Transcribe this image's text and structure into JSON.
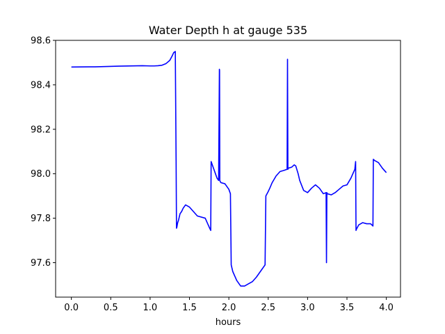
{
  "chart_data": {
    "type": "line",
    "title": "Water Depth h at gauge 535",
    "xlabel": "hours",
    "ylabel": "",
    "xlim": [
      -0.2,
      4.18
    ],
    "ylim": [
      97.445,
      98.6
    ],
    "xticks": [
      0.0,
      0.5,
      1.0,
      1.5,
      2.0,
      2.5,
      3.0,
      3.5,
      4.0
    ],
    "xtick_labels": [
      "0.0",
      "0.5",
      "1.0",
      "1.5",
      "2.0",
      "2.5",
      "3.0",
      "3.5",
      "4.0"
    ],
    "yticks": [
      97.6,
      97.8,
      98.0,
      98.2,
      98.4,
      98.6
    ],
    "ytick_labels": [
      "97.6",
      "97.8",
      "98.0",
      "98.2",
      "98.4",
      "98.6"
    ],
    "grid": false,
    "series": [
      {
        "color": "#0000ff",
        "x": [
          0.0,
          0.3,
          0.6,
          0.9,
          1.0,
          1.05,
          1.1,
          1.15,
          1.2,
          1.25,
          1.28,
          1.3,
          1.32,
          1.33,
          1.33,
          1.335,
          1.34,
          1.345,
          1.35,
          1.36,
          1.38,
          1.4,
          1.42,
          1.45,
          1.5,
          1.55,
          1.6,
          1.7,
          1.75,
          1.77,
          1.775,
          1.8,
          1.83,
          1.85,
          1.87,
          1.88,
          1.882,
          1.885,
          1.89,
          1.9,
          1.95,
          2.0,
          2.02,
          2.03,
          2.05,
          2.1,
          2.15,
          2.2,
          2.25,
          2.3,
          2.35,
          2.4,
          2.46,
          2.47,
          2.5,
          2.52,
          2.55,
          2.6,
          2.65,
          2.7,
          2.74,
          2.745,
          2.75,
          2.755,
          2.8,
          2.83,
          2.85,
          2.88,
          2.9,
          2.95,
          3.0,
          3.05,
          3.1,
          3.15,
          3.2,
          3.235,
          3.24,
          3.245,
          3.25,
          3.3,
          3.35,
          3.4,
          3.45,
          3.5,
          3.55,
          3.6,
          3.61,
          3.615,
          3.62,
          3.65,
          3.7,
          3.75,
          3.8,
          3.83,
          3.835,
          3.85,
          3.9,
          3.95,
          4.0
        ],
        "y": [
          98.48,
          98.481,
          98.484,
          98.486,
          98.485,
          98.485,
          98.486,
          98.488,
          98.495,
          98.51,
          98.53,
          98.545,
          98.55,
          98.06,
          98.07,
          97.755,
          97.76,
          97.77,
          97.78,
          97.79,
          97.82,
          97.83,
          97.845,
          97.86,
          97.85,
          97.83,
          97.81,
          97.8,
          97.76,
          97.745,
          98.055,
          98.03,
          98.0,
          97.98,
          97.97,
          98.47,
          98.465,
          97.97,
          97.965,
          97.96,
          97.955,
          97.93,
          97.91,
          97.59,
          97.56,
          97.52,
          97.495,
          97.495,
          97.505,
          97.515,
          97.535,
          97.56,
          97.59,
          97.9,
          97.92,
          97.935,
          97.96,
          97.99,
          98.01,
          98.015,
          98.02,
          98.515,
          98.02,
          98.025,
          98.03,
          98.04,
          98.035,
          98.0,
          97.97,
          97.925,
          97.915,
          97.935,
          97.95,
          97.935,
          97.91,
          97.915,
          97.6,
          97.915,
          97.91,
          97.905,
          97.915,
          97.93,
          97.945,
          97.95,
          97.98,
          98.02,
          98.055,
          97.745,
          97.75,
          97.77,
          97.78,
          97.775,
          97.775,
          97.765,
          98.065,
          98.06,
          98.05,
          98.025,
          98.005
        ]
      }
    ]
  }
}
